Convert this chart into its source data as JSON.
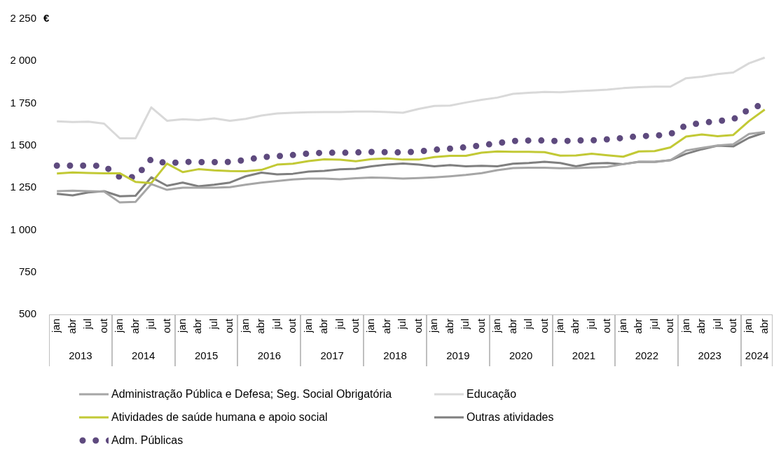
{
  "chart_data": {
    "type": "line",
    "ylabel": "€",
    "legend": "bottom",
    "grid": false,
    "marker": "none",
    "categories": [
      "jan",
      "abr",
      "jul",
      "out",
      "jan",
      "abr",
      "jul",
      "out",
      "jan",
      "abr",
      "jul",
      "out",
      "jan",
      "abr",
      "jul",
      "out",
      "jan",
      "abr",
      "jul",
      "out",
      "jan",
      "abr",
      "jul",
      "out",
      "jan",
      "abr",
      "jul",
      "out",
      "jan",
      "abr",
      "jul",
      "out",
      "jan",
      "abr",
      "jul",
      "out",
      "jan",
      "abr",
      "jul",
      "out",
      "jan",
      "abr",
      "jul",
      "out",
      "jan",
      "abr"
    ],
    "annotations": [
      "2013",
      "2014",
      "2015",
      "2016",
      "2017",
      "2018",
      "2019",
      "2020",
      "2021",
      "2022",
      "2023",
      "2024"
    ],
    "ylim": [
      500,
      2250
    ],
    "yticks": [
      500,
      750,
      {
        "value": 1000,
        "label": "1 000"
      },
      {
        "value": 1250,
        "label": "1 250"
      },
      {
        "value": 1500,
        "label": "1 500"
      },
      {
        "value": 1750,
        "label": "1 750"
      },
      {
        "value": 2000,
        "label": "2 000"
      },
      {
        "value": 2250,
        "label": "2 250"
      }
    ],
    "series": [
      {
        "name": "Administração Pública e Defesa; Seg. Social Obrigatória",
        "color": "#a6a6a6",
        "line_style": "solid",
        "values": [
          1230,
          1233,
          1230,
          1228,
          1163,
          1167,
          1272,
          1238,
          1251,
          1251,
          1251,
          1254,
          1268,
          1281,
          1290,
          1299,
          1304,
          1304,
          1300,
          1307,
          1311,
          1309,
          1304,
          1308,
          1312,
          1318,
          1326,
          1337,
          1354,
          1367,
          1369,
          1369,
          1366,
          1367,
          1370,
          1374,
          1390,
          1403,
          1402,
          1413,
          1470,
          1486,
          1500,
          1508,
          1569,
          1580
        ]
      },
      {
        "name": "Educação",
        "color": "#d9d9d9",
        "line_style": "solid",
        "values": [
          1644,
          1639,
          1641,
          1630,
          1543,
          1543,
          1726,
          1647,
          1656,
          1651,
          1661,
          1647,
          1658,
          1678,
          1690,
          1694,
          1697,
          1698,
          1698,
          1702,
          1702,
          1698,
          1694,
          1717,
          1735,
          1737,
          1755,
          1771,
          1784,
          1806,
          1812,
          1818,
          1816,
          1822,
          1826,
          1831,
          1840,
          1846,
          1849,
          1849,
          1899,
          1908,
          1923,
          1933,
          1987,
          2021
        ]
      },
      {
        "name": "Atividades de saúde humana e apoio social",
        "color": "#c2c935",
        "line_style": "solid",
        "values": [
          1335,
          1341,
          1338,
          1336,
          1336,
          1285,
          1278,
          1393,
          1343,
          1360,
          1353,
          1349,
          1348,
          1356,
          1387,
          1393,
          1408,
          1419,
          1416,
          1407,
          1420,
          1424,
          1417,
          1417,
          1432,
          1439,
          1439,
          1458,
          1465,
          1463,
          1463,
          1461,
          1440,
          1441,
          1452,
          1442,
          1434,
          1465,
          1467,
          1489,
          1553,
          1566,
          1555,
          1563,
          1645,
          1713
        ]
      },
      {
        "name": "Outras atividades",
        "color": "#7f7f7f",
        "line_style": "solid",
        "values": [
          1214,
          1205,
          1223,
          1230,
          1200,
          1203,
          1312,
          1262,
          1281,
          1259,
          1268,
          1281,
          1318,
          1340,
          1329,
          1333,
          1346,
          1350,
          1359,
          1363,
          1377,
          1387,
          1394,
          1387,
          1377,
          1384,
          1377,
          1380,
          1377,
          1393,
          1397,
          1404,
          1397,
          1377,
          1394,
          1397,
          1390,
          1404,
          1404,
          1413,
          1451,
          1478,
          1499,
          1495,
          1546,
          1577
        ]
      },
      {
        "name": "Adm. Públicas",
        "color": "#5e4a7e",
        "line_style": "dotted",
        "values": [
          1381,
          1381,
          1381,
          1380,
          1313,
          1313,
          1420,
          1393,
          1404,
          1402,
          1402,
          1403,
          1415,
          1431,
          1437,
          1444,
          1453,
          1458,
          1457,
          1459,
          1462,
          1461,
          1459,
          1465,
          1475,
          1482,
          1490,
          1501,
          1514,
          1527,
          1530,
          1530,
          1526,
          1530,
          1531,
          1537,
          1545,
          1556,
          1558,
          1568,
          1620,
          1634,
          1645,
          1655,
          1715,
          1748
        ]
      }
    ]
  }
}
